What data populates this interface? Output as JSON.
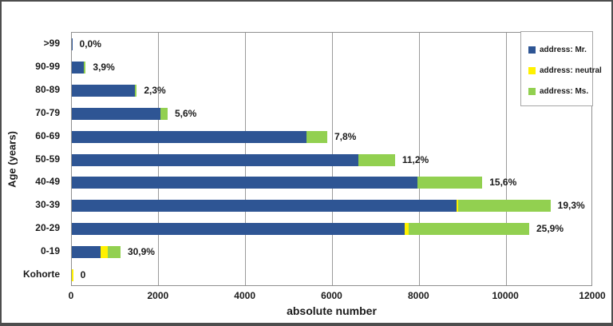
{
  "figure": {
    "background": "#ffffff",
    "border_color": "#4d4d4d"
  },
  "chart_data": {
    "type": "bar",
    "orientation": "horizontal-stacked",
    "title": "",
    "xlabel": "absolute number",
    "ylabel": "Age (years)",
    "xlim": [
      0,
      12000
    ],
    "xticks": [
      0,
      2000,
      4000,
      6000,
      8000,
      10000,
      12000
    ],
    "grid": true,
    "grid_color": "#9b9b9b",
    "legend_position": "top-right",
    "categories": [
      ">99",
      "90-99",
      "80-89",
      "70-79",
      "60-69",
      "50-59",
      "40-49",
      "30-39",
      "20-29",
      "0-19",
      "Kohorte"
    ],
    "series": [
      {
        "name": "address: Mr.",
        "color": "#2e5594",
        "values": [
          10,
          280,
          1450,
          2040,
          5400,
          6600,
          7950,
          8850,
          7670,
          660,
          0
        ]
      },
      {
        "name": "address: neutral",
        "color": "#fff100",
        "values": [
          0,
          0,
          0,
          0,
          0,
          0,
          0,
          40,
          90,
          165,
          30
        ]
      },
      {
        "name": "address: Ms.",
        "color": "#92d050",
        "values": [
          0,
          40,
          45,
          165,
          480,
          840,
          1500,
          2130,
          2770,
          295,
          0
        ]
      }
    ],
    "bar_labels": [
      "0,0%",
      "3,9%",
      "2,3%",
      "5,6%",
      "7,8%",
      "11,2%",
      "15,6%",
      "19,3%",
      "25,9%",
      "30,9%",
      "0"
    ]
  }
}
